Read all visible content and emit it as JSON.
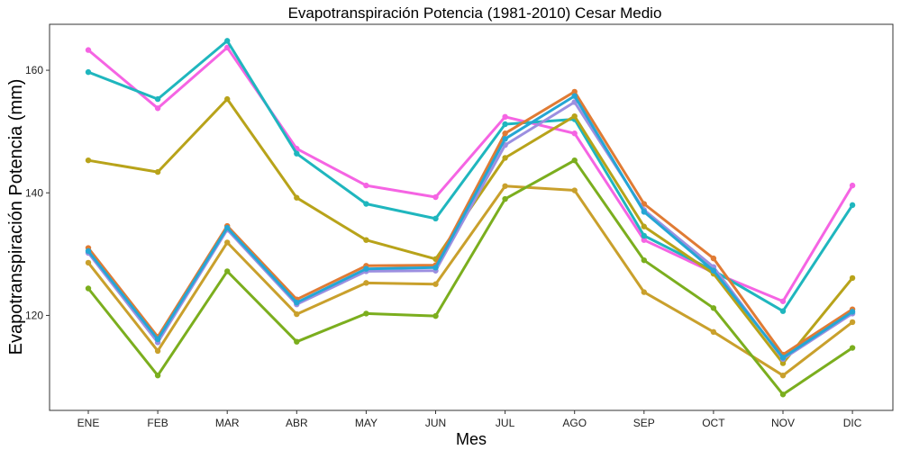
{
  "chart_data": {
    "type": "line",
    "title": "Evapotranspiración Potencia (1981-2010)  Cesar Medio",
    "xlabel": "Mes",
    "ylabel": "Evapotranspiración Potencia  (mm)",
    "categories": [
      "ENE",
      "FEB",
      "MAR",
      "ABR",
      "MAY",
      "JUN",
      "JUL",
      "AGO",
      "SEP",
      "OCT",
      "NOV",
      "DIC"
    ],
    "ylim": [
      104.5,
      167.5
    ],
    "yticks": [
      120,
      140,
      160
    ],
    "grid": false,
    "legend": "none",
    "series": [
      {
        "color": "#F564E3",
        "values": [
          163.3,
          153.8,
          163.7,
          147.2,
          141.2,
          139.3,
          152.4,
          149.7,
          132.3,
          127.0,
          122.3,
          141.2
        ]
      },
      {
        "color": "#1FB6BE",
        "values": [
          159.7,
          155.3,
          164.8,
          146.4,
          138.2,
          135.8,
          151.2,
          152.0,
          133.0,
          127.3,
          120.7,
          138.0
        ]
      },
      {
        "color": "#B8A31A",
        "values": [
          145.3,
          143.4,
          155.3,
          139.2,
          132.3,
          129.2,
          145.7,
          152.5,
          134.5,
          126.8,
          112.2,
          126.1
        ]
      },
      {
        "color": "#E07B34",
        "values": [
          131.0,
          116.5,
          134.6,
          122.6,
          128.1,
          128.2,
          149.7,
          156.5,
          138.2,
          129.3,
          113.6,
          121.0
        ]
      },
      {
        "color": "#9C8FE0",
        "values": [
          130.2,
          115.6,
          134.0,
          121.8,
          127.2,
          127.3,
          147.8,
          154.8,
          137.2,
          127.9,
          112.9,
          120.3
        ]
      },
      {
        "color": "#25A6D4",
        "values": [
          130.5,
          116.1,
          134.3,
          122.1,
          127.6,
          127.8,
          148.8,
          155.8,
          136.9,
          127.3,
          113.1,
          120.6
        ]
      },
      {
        "color": "#C9A02C",
        "values": [
          128.6,
          114.2,
          131.9,
          120.2,
          125.3,
          125.1,
          141.1,
          140.4,
          123.8,
          117.3,
          110.2,
          118.9
        ]
      },
      {
        "color": "#7BAE1E",
        "values": [
          124.4,
          110.2,
          127.2,
          115.7,
          120.3,
          119.9,
          139.0,
          145.3,
          129.0,
          121.2,
          107.1,
          114.7
        ]
      }
    ]
  }
}
